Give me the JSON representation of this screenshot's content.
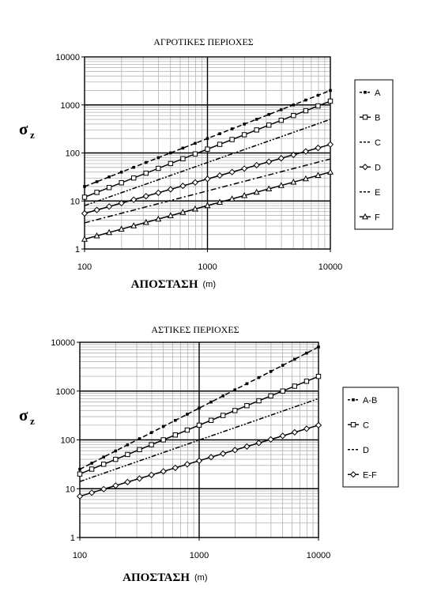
{
  "chart_data": [
    {
      "type": "line",
      "title": "ΑΓΡΟΤΙΚΕΣ ΠΕΡΙΟΧΕΣ",
      "xlabel": "ΑΠΟΣΤΑΣΗ",
      "xunit": "(m)",
      "ylabel": "σ",
      "ylabel_sub": "z",
      "xscale": "log",
      "yscale": "log",
      "xlim": [
        100,
        10000
      ],
      "ylim": [
        1,
        10000
      ],
      "xticks": [
        "100",
        "1000",
        "10000"
      ],
      "yticks": [
        "1",
        "10",
        "100",
        "1000",
        "10000"
      ],
      "grid": true,
      "legend_position": "right",
      "x": [
        100,
        10000
      ],
      "series": [
        {
          "name": "A",
          "values": [
            20,
            2000
          ],
          "marker": "small-square",
          "line": "dash"
        },
        {
          "name": "B",
          "values": [
            12,
            1200
          ],
          "marker": "open-square",
          "line": "solid"
        },
        {
          "name": "C",
          "values": [
            8,
            500
          ],
          "marker": "none",
          "line": "dash-dot-dot"
        },
        {
          "name": "D",
          "values": [
            5.5,
            150
          ],
          "marker": "open-diamond",
          "line": "solid"
        },
        {
          "name": "E",
          "values": [
            3.5,
            75
          ],
          "marker": "none",
          "line": "dash-dot"
        },
        {
          "name": "F",
          "values": [
            1.6,
            40
          ],
          "marker": "open-triangle",
          "line": "solid"
        }
      ]
    },
    {
      "type": "line",
      "title": "ΑΣΤΙΚΕΣ ΠΕΡΙΟΧΕΣ",
      "xlabel": "ΑΠΟΣΤΑΣΗ",
      "xunit": "(m)",
      "ylabel": "σ",
      "ylabel_sub": "z",
      "xscale": "log",
      "yscale": "log",
      "xlim": [
        100,
        10000
      ],
      "ylim": [
        1,
        10000
      ],
      "xticks": [
        "100",
        "1000",
        "10000"
      ],
      "yticks": [
        "1",
        "10",
        "100",
        "1000",
        "10000"
      ],
      "grid": true,
      "legend_position": "right",
      "x": [
        100,
        10000
      ],
      "series": [
        {
          "name": "A-B",
          "values": [
            25,
            8000
          ],
          "marker": "small-square",
          "line": "dash"
        },
        {
          "name": "C",
          "values": [
            20,
            2000
          ],
          "marker": "open-square",
          "line": "solid"
        },
        {
          "name": "D",
          "values": [
            14,
            700
          ],
          "marker": "none",
          "line": "dash-dot-dot"
        },
        {
          "name": "E-F",
          "values": [
            7,
            200
          ],
          "marker": "open-diamond",
          "line": "solid"
        }
      ]
    }
  ]
}
